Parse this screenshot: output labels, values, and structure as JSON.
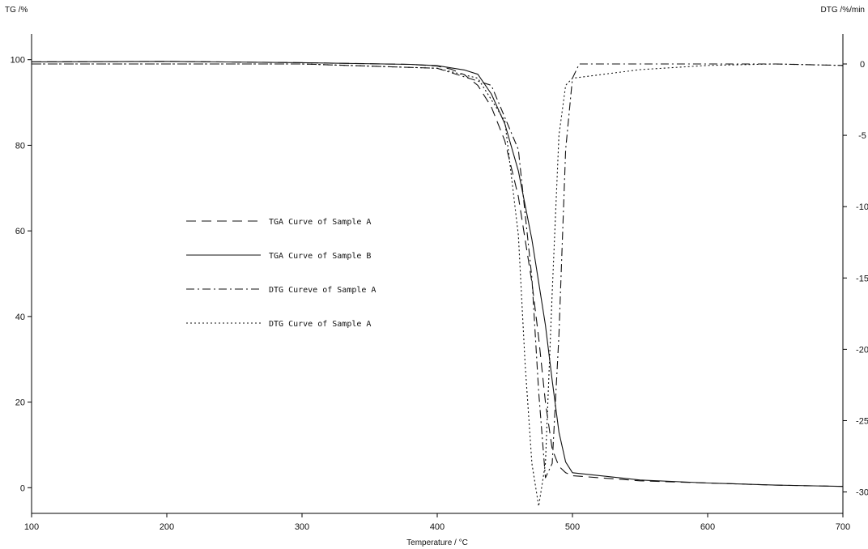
{
  "chart_data": {
    "type": "line",
    "title": "",
    "xlabel": "Temperature / °C",
    "ylabel_left": "TG /%",
    "ylabel_right": "DTG /%/min",
    "xlim": [
      100,
      700
    ],
    "ylim_left": [
      -6,
      106
    ],
    "ylim_right": [
      -31.5,
      2.1
    ],
    "x_ticks": [
      100,
      200,
      300,
      400,
      500,
      600,
      700
    ],
    "y_left_ticks": [
      0,
      20,
      40,
      60,
      80,
      100
    ],
    "y_right_ticks": [
      0,
      -5,
      -10,
      -15,
      -20,
      -25,
      -30
    ],
    "grid": false,
    "legend_position": "center-left",
    "series": [
      {
        "name": "TGA Curve of Sample A",
        "axis": "left",
        "style": "longdash",
        "x": [
          100,
          200,
          300,
          380,
          400,
          410,
          420,
          430,
          440,
          450,
          460,
          470,
          475,
          480,
          485,
          490,
          495,
          500,
          550,
          600,
          650,
          700
        ],
        "y": [
          99.5,
          99.6,
          99.3,
          98.9,
          98.5,
          97.8,
          96.5,
          94.0,
          89.0,
          81.0,
          68.0,
          48.0,
          35.0,
          20.0,
          9.0,
          5.0,
          3.5,
          2.8,
          1.6,
          1.1,
          0.6,
          0.3
        ]
      },
      {
        "name": "TGA Curve of Sample B",
        "axis": "left",
        "style": "solid",
        "x": [
          100,
          200,
          300,
          380,
          400,
          420,
          430,
          440,
          450,
          460,
          470,
          480,
          485,
          490,
          495,
          500,
          550,
          600,
          650,
          700
        ],
        "y": [
          99.5,
          99.6,
          99.3,
          98.9,
          98.6,
          97.6,
          96.6,
          92.0,
          85.0,
          74.0,
          58.0,
          38.0,
          25.0,
          13.0,
          6.0,
          3.5,
          1.8,
          1.1,
          0.6,
          0.3
        ]
      },
      {
        "name": "DTG Cureve of Sample A",
        "axis": "right",
        "style": "dashdot",
        "x": [
          100,
          200,
          300,
          400,
          440,
          460,
          470,
          475,
          480,
          485,
          490,
          495,
          500,
          505,
          550,
          600,
          650,
          700
        ],
        "y": [
          0,
          0,
          0,
          -0.3,
          -1.5,
          -6.0,
          -15.0,
          -23.0,
          -29.0,
          -28.0,
          -19.0,
          -6.0,
          -1.0,
          0,
          0,
          0,
          0,
          -0.1
        ]
      },
      {
        "name": "DTG Curve of Sample A",
        "axis": "right",
        "style": "dotted",
        "x": [
          100,
          200,
          300,
          400,
          430,
          450,
          460,
          465,
          470,
          475,
          480,
          485,
          490,
          495,
          500,
          550,
          600,
          650,
          700
        ],
        "y": [
          0,
          0,
          0,
          -0.3,
          -1.0,
          -4.0,
          -12.0,
          -21.0,
          -28.0,
          -31.0,
          -28.0,
          -16.0,
          -5.0,
          -1.5,
          -1.0,
          -0.4,
          -0.1,
          0,
          -0.1
        ]
      }
    ]
  }
}
